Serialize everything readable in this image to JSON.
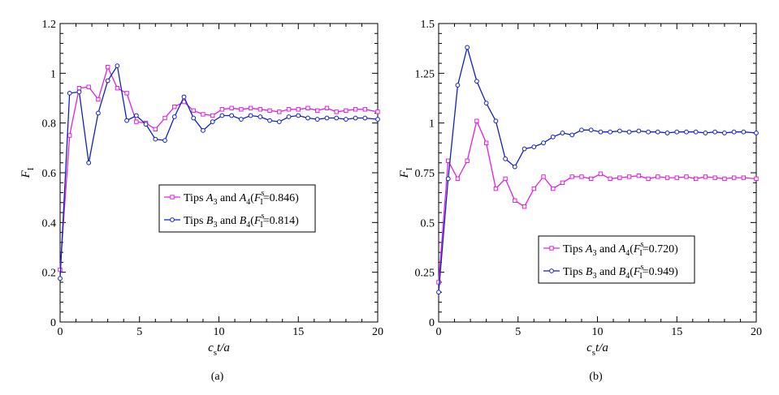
{
  "chart_data": [
    {
      "type": "line",
      "panel": "a",
      "caption": "(a)",
      "xlabel": {
        "main": "c",
        "sub": "s",
        "rest": "t/a"
      },
      "ylabel": {
        "main": "F",
        "sub": "I"
      },
      "xlim": [
        0,
        20
      ],
      "ylim": [
        0,
        1.2
      ],
      "xticks": [
        0,
        5,
        10,
        15,
        20
      ],
      "yticks": [
        0,
        0.2,
        0.4,
        0.6,
        0.8,
        1,
        1.2
      ],
      "xtick_labels": [
        "0",
        "5",
        "10",
        "15",
        "20"
      ],
      "ytick_labels": [
        "0",
        "0.2",
        "0.4",
        "0.6",
        "0.8",
        "1",
        "1.2"
      ],
      "legend_position": "center-right",
      "series": [
        {
          "name": "Tips A3 and A4",
          "legend": {
            "pre": "Tips ",
            "l1": "A",
            "s1": "3",
            "mid": " and ",
            "l2": "A",
            "s2": "4",
            "fmain": "F",
            "fsup": "s",
            "fsub": "I",
            "val": "=0.846)"
          },
          "color": "#e020e0",
          "marker": "square",
          "x": [
            0,
            0.6,
            1.2,
            1.8,
            2.4,
            3.0,
            3.6,
            4.2,
            4.8,
            5.4,
            6.0,
            6.6,
            7.2,
            7.8,
            8.4,
            9.0,
            9.6,
            10.2,
            10.8,
            11.4,
            12.0,
            12.6,
            13.2,
            13.8,
            14.4,
            15.0,
            15.6,
            16.2,
            16.8,
            17.4,
            18.0,
            18.6,
            19.2,
            20.0
          ],
          "y": [
            0.21,
            0.75,
            0.94,
            0.945,
            0.895,
            1.025,
            0.94,
            0.92,
            0.805,
            0.8,
            0.775,
            0.82,
            0.865,
            0.885,
            0.85,
            0.835,
            0.83,
            0.855,
            0.86,
            0.855,
            0.86,
            0.855,
            0.85,
            0.845,
            0.855,
            0.855,
            0.86,
            0.85,
            0.86,
            0.845,
            0.85,
            0.855,
            0.855,
            0.845
          ]
        },
        {
          "name": "Tips B3 and B4",
          "legend": {
            "pre": "Tips ",
            "l1": "B",
            "s1": "3",
            "mid": " and ",
            "l2": "B",
            "s2": "4",
            "fmain": "F",
            "fsup": "s",
            "fsub": "I",
            "val": "=0.814)"
          },
          "color": "#1020c8",
          "marker": "circle",
          "x": [
            0,
            0.6,
            1.2,
            1.8,
            2.4,
            3.0,
            3.6,
            4.2,
            4.8,
            5.4,
            6.0,
            6.6,
            7.2,
            7.8,
            8.4,
            9.0,
            9.6,
            10.2,
            10.8,
            11.4,
            12.0,
            12.6,
            13.2,
            13.8,
            14.4,
            15.0,
            15.6,
            16.2,
            16.8,
            17.4,
            18.0,
            18.6,
            19.2,
            20.0
          ],
          "y": [
            0.175,
            0.92,
            0.925,
            0.64,
            0.84,
            0.97,
            1.03,
            0.81,
            0.83,
            0.795,
            0.735,
            0.73,
            0.825,
            0.905,
            0.82,
            0.77,
            0.805,
            0.83,
            0.83,
            0.815,
            0.83,
            0.825,
            0.81,
            0.805,
            0.825,
            0.83,
            0.82,
            0.815,
            0.82,
            0.82,
            0.815,
            0.82,
            0.82,
            0.815
          ]
        }
      ]
    },
    {
      "type": "line",
      "panel": "b",
      "caption": "(b)",
      "xlabel": {
        "main": "c",
        "sub": "s",
        "rest": "t/a"
      },
      "ylabel": {
        "main": "F",
        "sub": "I"
      },
      "xlim": [
        0,
        20
      ],
      "ylim": [
        0,
        1.5
      ],
      "xticks": [
        0,
        5,
        10,
        15,
        20
      ],
      "yticks": [
        0,
        0.25,
        0.5,
        0.75,
        1,
        1.25,
        1.5
      ],
      "xtick_labels": [
        "0",
        "5",
        "10",
        "15",
        "20"
      ],
      "ytick_labels": [
        "0",
        "0.25",
        "0.5",
        "0.75",
        "1",
        "1.25",
        "1.5"
      ],
      "legend_position": "lower-right",
      "series": [
        {
          "name": "Tips A3 and A4",
          "legend": {
            "pre": "Tips ",
            "l1": "A",
            "s1": "3",
            "mid": " and ",
            "l2": "A",
            "s2": "4",
            "fmain": "F",
            "fsup": "s",
            "fsub": "I",
            "val": "=0.720)"
          },
          "color": "#e020e0",
          "marker": "square",
          "x": [
            0,
            0.6,
            1.2,
            1.8,
            2.4,
            3.0,
            3.6,
            4.2,
            4.8,
            5.4,
            6.0,
            6.6,
            7.2,
            7.8,
            8.4,
            9.0,
            9.6,
            10.2,
            10.8,
            11.4,
            12.0,
            12.6,
            13.2,
            13.8,
            14.4,
            15.0,
            15.6,
            16.2,
            16.8,
            17.4,
            18.0,
            18.6,
            19.2,
            20.0
          ],
          "y": [
            0.2,
            0.81,
            0.72,
            0.81,
            1.01,
            0.9,
            0.67,
            0.72,
            0.61,
            0.58,
            0.67,
            0.73,
            0.67,
            0.7,
            0.73,
            0.73,
            0.72,
            0.745,
            0.72,
            0.725,
            0.73,
            0.735,
            0.72,
            0.73,
            0.725,
            0.725,
            0.73,
            0.72,
            0.73,
            0.725,
            0.72,
            0.725,
            0.725,
            0.72
          ]
        },
        {
          "name": "Tips B3 and B4",
          "legend": {
            "pre": "Tips ",
            "l1": "B",
            "s1": "3",
            "mid": " and ",
            "l2": "B",
            "s2": "4",
            "fmain": "F",
            "fsup": "s",
            "fsub": "I",
            "val": "=0.949)"
          },
          "color": "#1020c8",
          "marker": "circle",
          "x": [
            0,
            0.6,
            1.2,
            1.8,
            2.4,
            3.0,
            3.6,
            4.2,
            4.8,
            5.4,
            6.0,
            6.6,
            7.2,
            7.8,
            8.4,
            9.0,
            9.6,
            10.2,
            10.8,
            11.4,
            12.0,
            12.6,
            13.2,
            13.8,
            14.4,
            15.0,
            15.6,
            16.2,
            16.8,
            17.4,
            18.0,
            18.6,
            19.2,
            20.0
          ],
          "y": [
            0.15,
            0.72,
            1.19,
            1.38,
            1.21,
            1.1,
            1.01,
            0.82,
            0.78,
            0.87,
            0.88,
            0.9,
            0.93,
            0.95,
            0.94,
            0.965,
            0.965,
            0.955,
            0.955,
            0.96,
            0.955,
            0.96,
            0.955,
            0.955,
            0.95,
            0.955,
            0.955,
            0.955,
            0.95,
            0.955,
            0.95,
            0.955,
            0.955,
            0.95
          ]
        }
      ]
    }
  ]
}
